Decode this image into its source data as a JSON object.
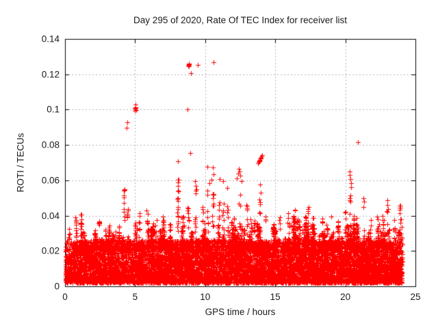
{
  "figure": {
    "title": "Day 295 of 2020, Rate Of TEC Index for receiver list",
    "xlabel": "GPS time / hours",
    "ylabel": "ROTI / TECUs"
  },
  "style": {
    "background": "#ffffff",
    "marker_color": "#ff0000",
    "grid_color": "#b4b4b4",
    "axis_color": "#000000",
    "text_color": "#1a1a1a"
  },
  "chart_data": {
    "type": "scatter",
    "title": "Day 295 of 2020, Rate Of TEC Index for receiver list",
    "xlabel": "GPS time / hours",
    "ylabel": "ROTI / TECUs",
    "xlim": [
      0,
      25
    ],
    "ylim": [
      0,
      0.14
    ],
    "xticks": [
      0,
      5,
      10,
      15,
      20,
      25
    ],
    "yticks": [
      0,
      0.02,
      0.04,
      0.06,
      0.08,
      0.1,
      0.12,
      0.14
    ],
    "grid": true,
    "legend": false,
    "marker": "+",
    "marker_color": "#ff0000",
    "x_data_range": [
      0.03,
      24.07
    ],
    "dense_band": {
      "comment": "continuous carpet of ROTI values across all 24 h",
      "n_points": 9500,
      "y_min": 0.002,
      "y_max": 0.026,
      "low_bias_exponent": 1.4
    },
    "grass": {
      "comment": "ragged tree-like texture on top of the dense band",
      "n_clusters": 170,
      "y_base": 0.02,
      "height_min": 0.024,
      "height_max": 0.041,
      "pts_min": 6,
      "pts_max": 18,
      "x_sigma": 0.05
    },
    "spikes": [
      {
        "x": 1.35,
        "ytop": 0.032,
        "n": 6
      },
      {
        "x": 2.2,
        "ytop": 0.03,
        "n": 5
      },
      {
        "x": 2.9,
        "ytop": 0.033,
        "n": 6
      },
      {
        "x": 3.6,
        "ytop": 0.034,
        "n": 6
      },
      {
        "x": 4.2,
        "ytop": 0.056,
        "n": 14
      },
      {
        "x": 4.45,
        "ytop": 0.048,
        "n": 8
      },
      {
        "x": 5.3,
        "ytop": 0.042,
        "n": 8
      },
      {
        "x": 5.9,
        "ytop": 0.043,
        "n": 8
      },
      {
        "x": 6.5,
        "ytop": 0.038,
        "n": 6
      },
      {
        "x": 7.0,
        "ytop": 0.04,
        "n": 8
      },
      {
        "x": 7.5,
        "ytop": 0.038,
        "n": 6
      },
      {
        "x": 8.05,
        "ytop": 0.0605,
        "n": 18
      },
      {
        "x": 8.45,
        "ytop": 0.042,
        "n": 8
      },
      {
        "x": 8.8,
        "ytop": 0.048,
        "n": 10
      },
      {
        "x": 9.3,
        "ytop": 0.0545,
        "n": 12
      },
      {
        "x": 9.8,
        "ytop": 0.046,
        "n": 8
      },
      {
        "x": 10.15,
        "ytop": 0.056,
        "n": 10
      },
      {
        "x": 10.55,
        "ytop": 0.055,
        "n": 12
      },
      {
        "x": 11.0,
        "ytop": 0.052,
        "n": 8
      },
      {
        "x": 11.3,
        "ytop": 0.048,
        "n": 8
      },
      {
        "x": 11.6,
        "ytop": 0.05,
        "n": 8
      },
      {
        "x": 12.1,
        "ytop": 0.044,
        "n": 8
      },
      {
        "x": 12.45,
        "ytop": 0.056,
        "n": 10
      },
      {
        "x": 13.0,
        "ytop": 0.046,
        "n": 8
      },
      {
        "x": 13.5,
        "ytop": 0.04,
        "n": 6
      },
      {
        "x": 13.9,
        "ytop": 0.05,
        "n": 12
      },
      {
        "x": 14.3,
        "ytop": 0.042,
        "n": 6
      },
      {
        "x": 14.9,
        "ytop": 0.038,
        "n": 6
      },
      {
        "x": 15.3,
        "ytop": 0.04,
        "n": 6
      },
      {
        "x": 15.9,
        "ytop": 0.042,
        "n": 6
      },
      {
        "x": 16.4,
        "ytop": 0.044,
        "n": 8
      },
      {
        "x": 17.0,
        "ytop": 0.04,
        "n": 6
      },
      {
        "x": 17.35,
        "ytop": 0.047,
        "n": 10
      },
      {
        "x": 17.8,
        "ytop": 0.038,
        "n": 6
      },
      {
        "x": 18.4,
        "ytop": 0.042,
        "n": 6
      },
      {
        "x": 19.0,
        "ytop": 0.042,
        "n": 8
      },
      {
        "x": 19.5,
        "ytop": 0.038,
        "n": 6
      },
      {
        "x": 20.0,
        "ytop": 0.045,
        "n": 8
      },
      {
        "x": 20.35,
        "ytop": 0.052,
        "n": 14
      },
      {
        "x": 20.8,
        "ytop": 0.04,
        "n": 6
      },
      {
        "x": 21.3,
        "ytop": 0.046,
        "n": 8
      },
      {
        "x": 21.8,
        "ytop": 0.038,
        "n": 6
      },
      {
        "x": 22.3,
        "ytop": 0.042,
        "n": 6
      },
      {
        "x": 22.7,
        "ytop": 0.04,
        "n": 6
      },
      {
        "x": 23.0,
        "ytop": 0.043,
        "n": 8
      },
      {
        "x": 23.5,
        "ytop": 0.04,
        "n": 8
      },
      {
        "x": 23.9,
        "ytop": 0.0465,
        "n": 14
      },
      {
        "x": 24.0,
        "ytop": 0.04,
        "n": 8
      }
    ],
    "outliers": [
      [
        4.38,
        0.0897
      ],
      [
        4.42,
        0.0927
      ],
      [
        4.97,
        0.0995
      ],
      [
        5.0,
        0.1005
      ],
      [
        5.02,
        0.1015
      ],
      [
        5.04,
        0.101
      ],
      [
        5.02,
        0.103
      ],
      [
        5.06,
        0.0998
      ],
      [
        8.05,
        0.0708
      ],
      [
        8.08,
        0.0605
      ],
      [
        8.72,
        0.1
      ],
      [
        8.95,
        0.0754
      ],
      [
        8.97,
        0.1205
      ],
      [
        8.8,
        0.1248
      ],
      [
        8.83,
        0.1252
      ],
      [
        8.86,
        0.1256
      ],
      [
        8.82,
        0.126
      ],
      [
        8.85,
        0.1244
      ],
      [
        9.45,
        0.1253
      ],
      [
        10.62,
        0.127
      ],
      [
        9.28,
        0.0595
      ],
      [
        9.32,
        0.057
      ],
      [
        9.36,
        0.0548
      ],
      [
        10.18,
        0.0677
      ],
      [
        10.55,
        0.0673
      ],
      [
        10.62,
        0.0634
      ],
      [
        10.45,
        0.0604
      ],
      [
        10.3,
        0.0585
      ],
      [
        11.02,
        0.0608
      ],
      [
        11.3,
        0.0595
      ],
      [
        11.58,
        0.0557
      ],
      [
        12.28,
        0.061
      ],
      [
        12.35,
        0.064
      ],
      [
        12.4,
        0.0665
      ],
      [
        12.45,
        0.0648
      ],
      [
        12.52,
        0.0628
      ],
      [
        12.58,
        0.0595
      ],
      [
        13.78,
        0.0695
      ],
      [
        13.82,
        0.0702
      ],
      [
        13.86,
        0.0708
      ],
      [
        13.9,
        0.0715
      ],
      [
        13.94,
        0.0722
      ],
      [
        13.98,
        0.0728
      ],
      [
        14.02,
        0.0735
      ],
      [
        14.06,
        0.0742
      ],
      [
        13.88,
        0.071
      ],
      [
        13.96,
        0.0725
      ],
      [
        13.92,
        0.0576
      ],
      [
        13.98,
        0.053
      ],
      [
        20.3,
        0.065
      ],
      [
        20.33,
        0.063
      ],
      [
        20.36,
        0.0608
      ],
      [
        20.4,
        0.0585
      ],
      [
        20.43,
        0.056
      ],
      [
        20.9,
        0.0817
      ],
      [
        21.28,
        0.05
      ],
      [
        21.32,
        0.0478
      ],
      [
        22.98,
        0.0487
      ],
      [
        23.02,
        0.0462
      ],
      [
        23.06,
        0.0437
      ],
      [
        5.82,
        0.0428
      ]
    ]
  }
}
